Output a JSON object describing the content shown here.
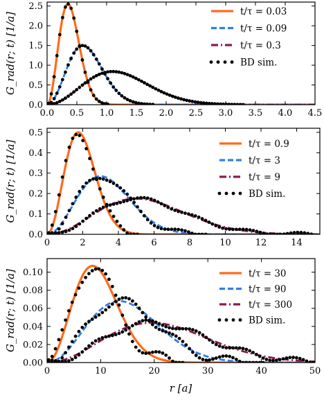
{
  "xlabel": "r [a]",
  "ylabel": "G_rad(r; t) [1/a]",
  "colors": {
    "theory_1": "#ff6a1a",
    "theory_2": "#2f7ee8",
    "theory_3": "#8c1a50",
    "sim": "#000000"
  },
  "chart_data": [
    {
      "type": "line",
      "xlim": [
        0,
        4.5
      ],
      "ylim": [
        0,
        2.6
      ],
      "xticks": [
        0.0,
        0.5,
        1.0,
        1.5,
        2.0,
        2.5,
        3.0,
        3.5,
        4.0,
        4.5
      ],
      "xtick_labels": [
        "0.0",
        "0.5",
        "1.0",
        "1.5",
        "2.0",
        "2.5",
        "3.0",
        "3.5",
        "4.0",
        "4.5"
      ],
      "yticks": [
        0.0,
        0.5,
        1.0,
        1.5,
        2.0,
        2.5
      ],
      "ytick_labels": [
        "0.0",
        "0.5",
        "1.0",
        "1.5",
        "2.0",
        "2.5"
      ],
      "ylabel": "G_rad(r; t) [1/a]",
      "legend_position": "top-right",
      "series": [
        {
          "name": "t/τ = 0.03",
          "style": "solid",
          "color": "#ff6a1a",
          "peak_r": 0.35,
          "peak_value": 2.55
        },
        {
          "name": "t/τ = 0.09",
          "style": "dashed",
          "color": "#2f7ee8",
          "peak_r": 0.6,
          "peak_value": 1.5
        },
        {
          "name": "t/τ = 0.3",
          "style": "dashdot",
          "color": "#8c1a50",
          "peak_r": 1.1,
          "peak_value": 0.84
        },
        {
          "name": "BD sim.",
          "style": "dots",
          "color": "#000000"
        }
      ]
    },
    {
      "type": "line",
      "xlim": [
        0,
        15.3
      ],
      "ylim": [
        0,
        0.52
      ],
      "xticks": [
        0,
        2,
        4,
        6,
        8,
        10,
        12,
        14
      ],
      "xtick_labels": [
        "0",
        "2",
        "4",
        "6",
        "8",
        "10",
        "12",
        "14"
      ],
      "yticks": [
        0.0,
        0.1,
        0.2,
        0.3,
        0.4,
        0.5
      ],
      "ytick_labels": [
        "0.0",
        "0.1",
        "0.2",
        "0.3",
        "0.4",
        "0.5"
      ],
      "ylabel": "G_rad(r; t) [1/a]",
      "legend_position": "top-right",
      "series": [
        {
          "name": "t/τ = 0.9",
          "style": "solid",
          "color": "#ff6a1a",
          "peak_r": 1.75,
          "peak_value": 0.5
        },
        {
          "name": "t/τ = 3",
          "style": "dashed",
          "color": "#2f7ee8",
          "peak_r": 3.0,
          "peak_value": 0.285
        },
        {
          "name": "t/τ = 9",
          "style": "dashdot",
          "color": "#8c1a50",
          "peak_r": 5.0,
          "peak_value": 0.175
        },
        {
          "name": "BD sim.",
          "style": "dots",
          "color": "#000000"
        }
      ]
    },
    {
      "type": "line",
      "xlim": [
        0,
        50
      ],
      "ylim": [
        0,
        0.115
      ],
      "xticks": [
        0,
        10,
        20,
        30,
        40,
        50
      ],
      "xtick_labels": [
        "0",
        "10",
        "20",
        "30",
        "40",
        "50"
      ],
      "yticks": [
        0.0,
        0.02,
        0.04,
        0.06,
        0.08,
        0.1
      ],
      "ytick_labels": [
        "0.00",
        "0.02",
        "0.04",
        "0.06",
        "0.08",
        "0.10"
      ],
      "ylabel": "G_rad(r; t) [1/a]",
      "xlabel": "r [a]",
      "legend_position": "top-right",
      "series": [
        {
          "name": "t/τ = 30",
          "style": "solid",
          "color": "#ff6a1a",
          "peak_r": 8.5,
          "peak_value": 0.107
        },
        {
          "name": "t/τ = 90",
          "style": "dashed",
          "color": "#2f7ee8",
          "peak_r": 13.5,
          "peak_value": 0.068
        },
        {
          "name": "t/τ = 300",
          "style": "dashdot",
          "color": "#8c1a50",
          "peak_r": 19.5,
          "peak_value": 0.044
        },
        {
          "name": "BD sim.",
          "style": "dots",
          "color": "#000000"
        }
      ]
    }
  ]
}
